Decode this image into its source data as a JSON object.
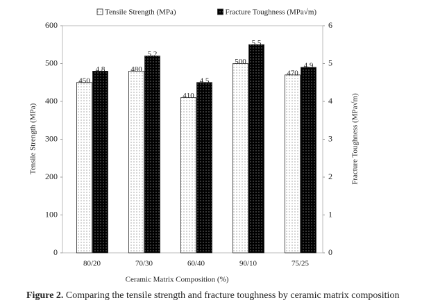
{
  "chart_data": {
    "type": "bar",
    "x_label": "Ceramic Matrix Composition (%)",
    "y_label": "Tensile Strength (MPa)",
    "y2_label": "Fracture Toughness (MPa√m)",
    "categories": [
      "80/20",
      "70/30",
      "60/40",
      "90/10",
      "75/25"
    ],
    "series": [
      {
        "name": "Tensile Strength (MPa)",
        "color": "#ffffff",
        "values": [
          450,
          480,
          410,
          500,
          470
        ]
      },
      {
        "name": "Fracture Toughness (MPa√m)",
        "color": "#000000",
        "axis": "y2",
        "values": [
          4.8,
          5.2,
          4.5,
          5.5,
          4.9
        ]
      }
    ],
    "ylim": [
      0,
      600
    ],
    "yticks": [
      0,
      100,
      200,
      300,
      400,
      500,
      600
    ],
    "y2lim": [
      0,
      6
    ],
    "y2ticks": [
      0,
      1,
      2,
      3,
      4,
      5,
      6
    ],
    "grid": false,
    "legend": "top"
  },
  "caption": {
    "label": "Figure 2.",
    "text": "Comparing the tensile strength and fracture toughness by ceramic matrix composition"
  }
}
